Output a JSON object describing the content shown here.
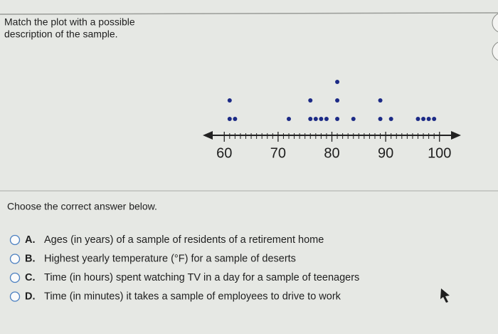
{
  "question": {
    "lines": [
      "Match the plot with a possible",
      "description of the sample."
    ]
  },
  "chart_data": {
    "type": "dotplot",
    "values": [
      61,
      61,
      62,
      72,
      76,
      76,
      77,
      78,
      79,
      81,
      81,
      81,
      84,
      89,
      89,
      91,
      96,
      97,
      98,
      99
    ],
    "color": "#1c2a86",
    "xlim": [
      56,
      104
    ],
    "xticks": [
      60,
      70,
      80,
      90,
      100
    ],
    "xminorticks": [
      61,
      62,
      63,
      64,
      65,
      66,
      67,
      68,
      69,
      71,
      72,
      73,
      74,
      75,
      76,
      77,
      78,
      79,
      81,
      82,
      83,
      84,
      85,
      86,
      87,
      88,
      89,
      91,
      92,
      93,
      94,
      95,
      96,
      97,
      98,
      99
    ]
  },
  "prompt": "Choose the correct answer below.",
  "options": [
    {
      "letter": "A.",
      "text": "Ages (in years) of a sample of residents of a retirement home"
    },
    {
      "letter": "B.",
      "text": "Highest yearly temperature (°F) for a sample of deserts"
    },
    {
      "letter": "C.",
      "text": "Time (in hours) spent watching TV in a day for a sample of teenagers"
    },
    {
      "letter": "D.",
      "text": "Time (in minutes) it takes a sample of employees to drive to work"
    }
  ]
}
